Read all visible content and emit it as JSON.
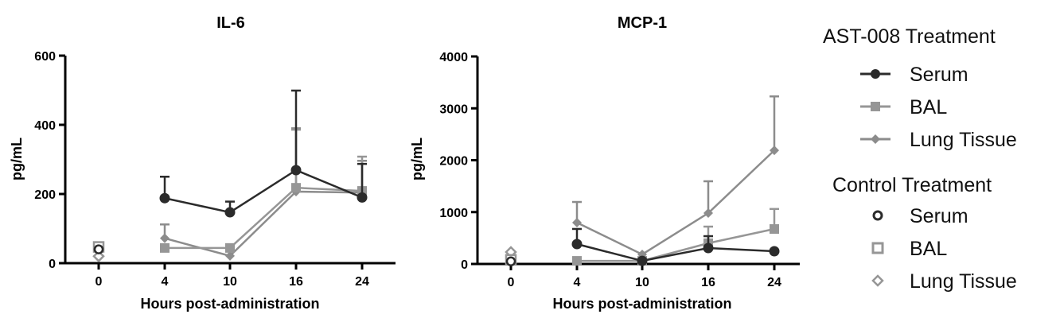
{
  "colors": {
    "serum": "#2b2b2b",
    "bal": "#969696",
    "lung": "#8c8c8c",
    "axis": "#000000"
  },
  "legend": {
    "treated_heading": "AST-008 Treatment",
    "treated_items": [
      "Serum",
      "BAL",
      "Lung Tissue"
    ],
    "control_heading": "Control Treatment",
    "control_items": [
      "Serum",
      "BAL",
      "Lung  Tissue"
    ]
  },
  "chart_data": [
    {
      "type": "line",
      "title": "IL-6",
      "xlabel": "Hours post-administration",
      "ylabel": "pg/mL",
      "categories": [
        "0",
        "4",
        "10",
        "16",
        "24"
      ],
      "ylim": [
        0,
        600
      ],
      "yticks": [
        0,
        200,
        400,
        600
      ],
      "series": [
        {
          "name": "AST-008 Serum",
          "x": [
            "4",
            "10",
            "16",
            "24"
          ],
          "values": [
            188,
            147,
            269,
            190
          ],
          "error_upper": [
            250,
            178,
            499,
            287
          ]
        },
        {
          "name": "AST-008 BAL",
          "x": [
            "4",
            "10",
            "16",
            "24"
          ],
          "values": [
            44,
            44,
            218,
            209
          ],
          "error_upper": [
            null,
            null,
            386,
            308
          ]
        },
        {
          "name": "AST-008 Lung Tissue",
          "x": [
            "4",
            "10",
            "16",
            "24"
          ],
          "values": [
            72,
            21,
            207,
            204
          ],
          "error_upper": [
            112,
            null,
            390,
            296
          ]
        },
        {
          "name": "Control Serum",
          "x": [
            "0"
          ],
          "values": [
            40
          ]
        },
        {
          "name": "Control BAL",
          "x": [
            "0"
          ],
          "values": [
            47
          ]
        },
        {
          "name": "Control Lung Tissue",
          "x": [
            "0"
          ],
          "values": [
            20
          ]
        }
      ]
    },
    {
      "type": "line",
      "title": "MCP-1",
      "xlabel": "Hours post-administration",
      "ylabel": "pg/mL",
      "categories": [
        "0",
        "4",
        "10",
        "16",
        "24"
      ],
      "ylim": [
        0,
        4000
      ],
      "yticks": [
        0,
        1000,
        2000,
        3000,
        4000
      ],
      "series": [
        {
          "name": "AST-008 Serum",
          "x": [
            "4",
            "10",
            "16",
            "24"
          ],
          "values": [
            383,
            60,
            306,
            245
          ],
          "error_upper": [
            675,
            null,
            536,
            null
          ]
        },
        {
          "name": "AST-008 BAL",
          "x": [
            "4",
            "10",
            "16",
            "24"
          ],
          "values": [
            60,
            60,
            400,
            674
          ],
          "error_upper": [
            null,
            null,
            720,
            1060
          ]
        },
        {
          "name": "AST-008 Lung Tissue",
          "x": [
            "4",
            "10",
            "16",
            "24"
          ],
          "values": [
            797,
            184,
            980,
            2190
          ],
          "error_upper": [
            1195,
            null,
            1594,
            3230
          ]
        },
        {
          "name": "Control Serum",
          "x": [
            "0"
          ],
          "values": [
            50
          ]
        },
        {
          "name": "Control BAL",
          "x": [
            "0"
          ],
          "values": [
            80
          ]
        },
        {
          "name": "Control Lung Tissue",
          "x": [
            "0"
          ],
          "values": [
            230
          ]
        }
      ]
    }
  ]
}
